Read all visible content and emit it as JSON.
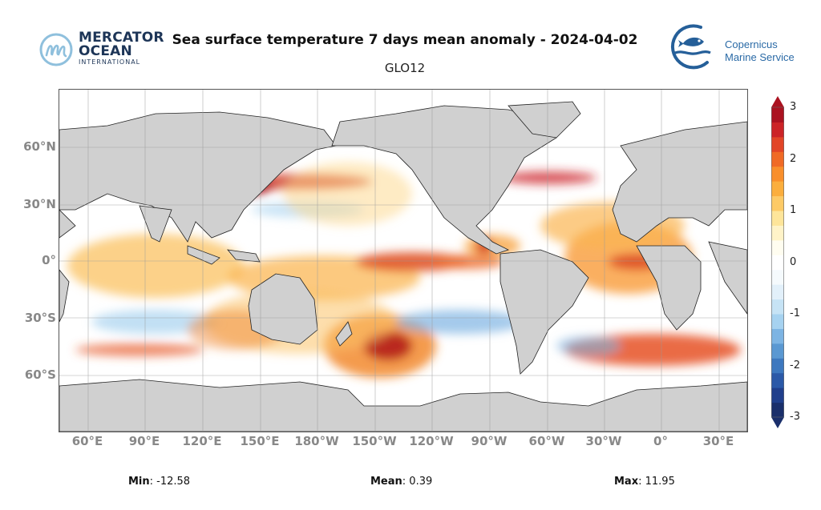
{
  "header": {
    "title": "Sea surface temperature 7 days mean anomaly - 2024-04-02",
    "subtitle": "GLO12"
  },
  "logos": {
    "left": {
      "line1": "MERCATOR",
      "line2": "OCEAN",
      "line3": "INTERNATIONAL"
    },
    "right": {
      "line1": "Copernicus",
      "line2": "Marine Service"
    }
  },
  "map": {
    "lat_labels": [
      "60°N",
      "30°N",
      "0°",
      "30°S",
      "60°S"
    ],
    "lon_labels": [
      "60°E",
      "90°E",
      "120°E",
      "150°E",
      "180°W",
      "150°W",
      "120°W",
      "90°W",
      "60°W",
      "30°W",
      "0°",
      "30°E"
    ],
    "colors": {
      "land": "#d0d0d0",
      "grid": "#9a9a9a",
      "coast": "#222222"
    }
  },
  "colorbar": {
    "tick_labels": [
      "3",
      "2",
      "1",
      "0",
      "-1",
      "-2",
      "-3"
    ],
    "range": [
      -3,
      3
    ],
    "colors": [
      "#1a2f6b",
      "#203f8c",
      "#2b59a8",
      "#3d78bf",
      "#5a98d2",
      "#7db4e3",
      "#a6d2f0",
      "#c6e3f5",
      "#e2f0fa",
      "#f5fafd",
      "#ffffff",
      "#fffdf0",
      "#fff3c8",
      "#fee59a",
      "#fdca66",
      "#fbae3d",
      "#f98f2b",
      "#f06a25",
      "#e24527",
      "#cc2327",
      "#ab1220"
    ]
  },
  "stats": {
    "min_label": "Min",
    "min_value": ": -12.58",
    "mean_label": "Mean",
    "mean_value": ": 0.39",
    "max_label": "Max",
    "max_value": ": 11.95"
  }
}
